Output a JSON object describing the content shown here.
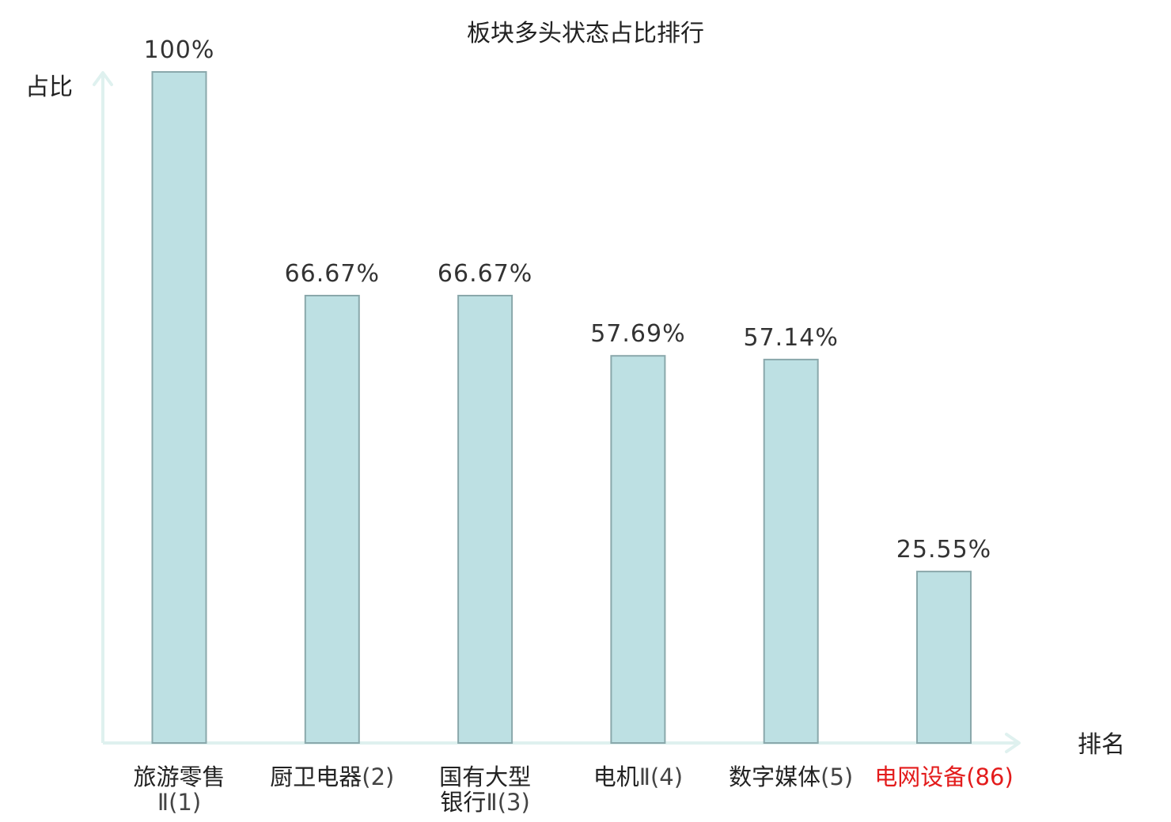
{
  "chart_data": {
    "type": "bar",
    "title": "板块多头状态占比排行",
    "ylabel": "占比",
    "xlabel": "排名",
    "ylim": [
      0,
      100
    ],
    "grid": false,
    "legend": "none",
    "categories": [
      {
        "lines": [
          {
            "name": "旅游零售",
            "rank": ""
          },
          {
            "name": "",
            "rank": "Ⅱ(1)"
          }
        ],
        "highlight": false
      },
      {
        "lines": [
          {
            "name": "厨卫电器",
            "rank": "(2)"
          }
        ],
        "highlight": false
      },
      {
        "lines": [
          {
            "name": "国有大型",
            "rank": ""
          },
          {
            "name": "银行",
            "rank": "Ⅱ(3)"
          }
        ],
        "highlight": false
      },
      {
        "lines": [
          {
            "name": "电机",
            "rank": "Ⅱ(4)"
          }
        ],
        "highlight": false
      },
      {
        "lines": [
          {
            "name": "数字媒体",
            "rank": "(5)"
          }
        ],
        "highlight": false
      },
      {
        "lines": [
          {
            "name": "电网设备",
            "rank": "(86)"
          }
        ],
        "highlight": true
      }
    ],
    "values": [
      100,
      66.67,
      66.67,
      57.69,
      57.14,
      25.55
    ],
    "value_labels": [
      "100%",
      "66.67%",
      "66.67%",
      "57.69%",
      "57.14%",
      "25.55%"
    ],
    "colors": {
      "bar_fill": "#bde0e3",
      "bar_stroke": "#8aa8ab",
      "axis": "#dff1ef",
      "highlight_text": "#e31b1b"
    }
  }
}
